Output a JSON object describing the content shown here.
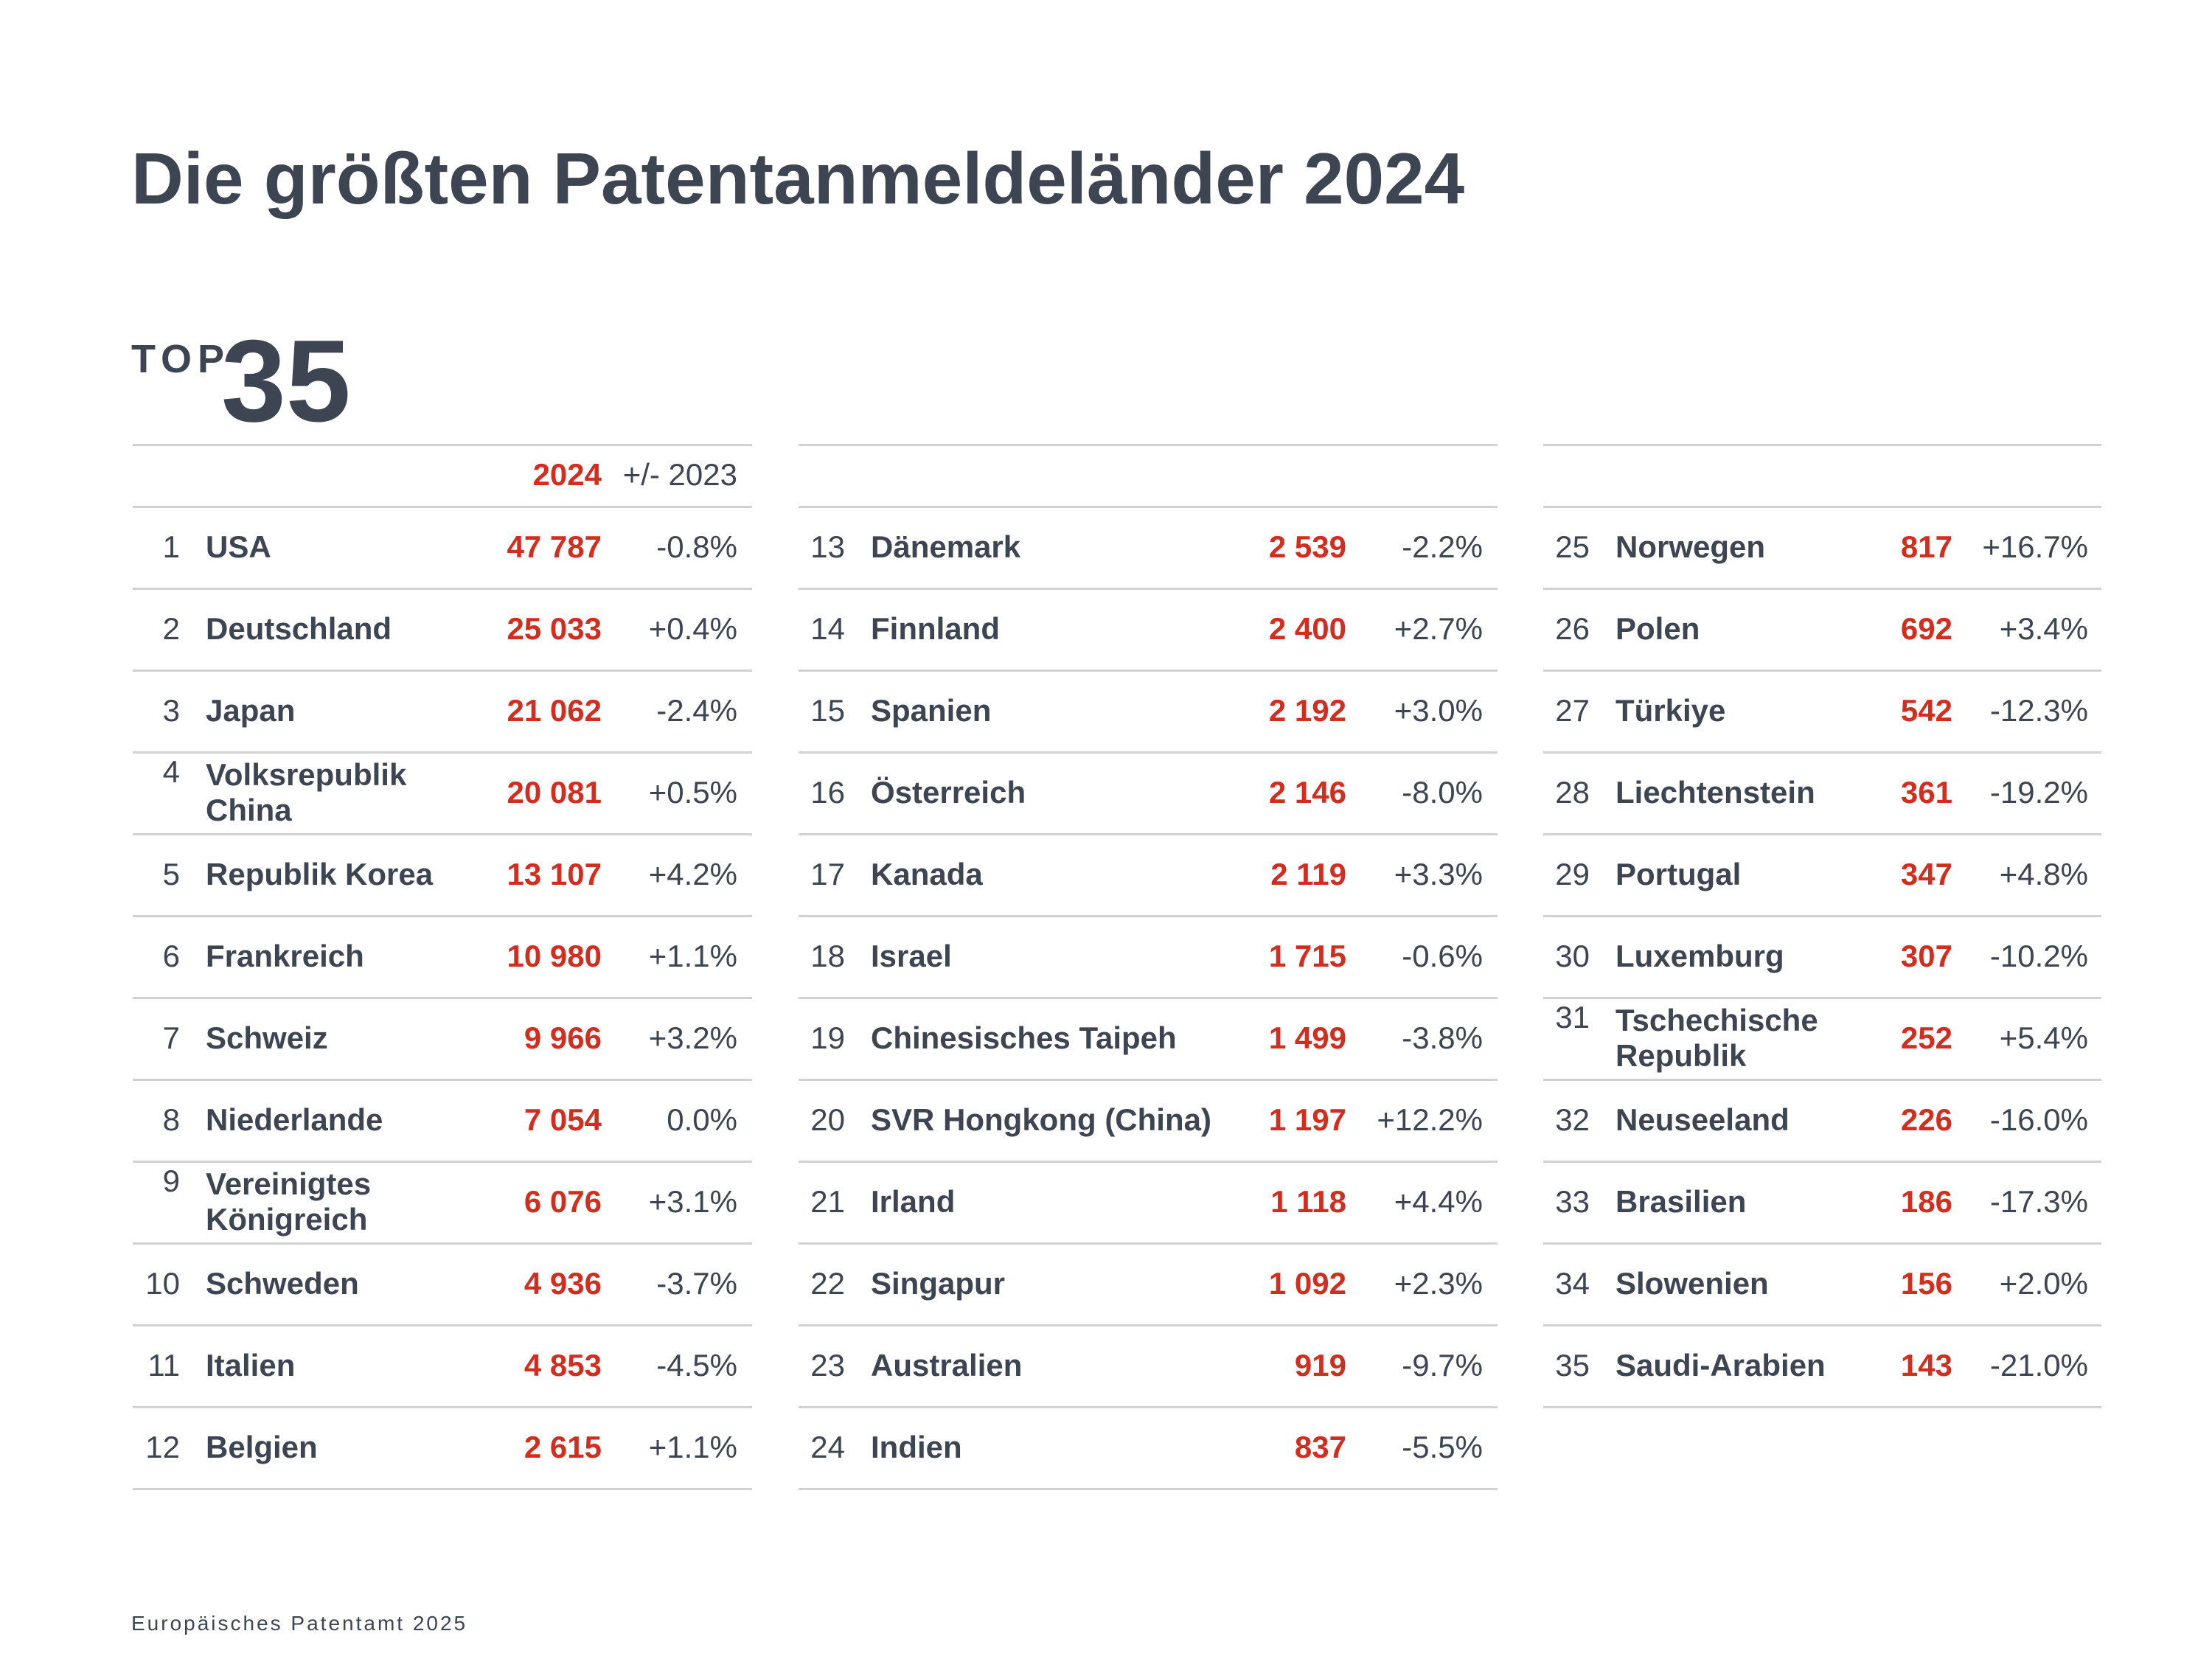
{
  "title": "Die größten Patentanmeldeländer 2024",
  "badge": {
    "prefix": "TOP",
    "number": "35"
  },
  "header": {
    "year": "2024",
    "change": "+/- 2023"
  },
  "footer": "Europäisches Patentamt 2025",
  "colors": {
    "text": "#3d4452",
    "accent": "#d22d1e",
    "divider": "#d2d2d2"
  },
  "chart_data": {
    "type": "table",
    "title": "Die größten Patentanmeldeländer 2024",
    "columns": [
      "",
      "",
      "2024",
      "+/- 2023"
    ],
    "rows": [
      {
        "rank": "1",
        "country": "USA",
        "value": "47 787",
        "change": "-0.8%"
      },
      {
        "rank": "2",
        "country": "Deutschland",
        "value": "25 033",
        "change": "+0.4%"
      },
      {
        "rank": "3",
        "country": "Japan",
        "value": "21 062",
        "change": "-2.4%"
      },
      {
        "rank": "4",
        "country": "Volksrepublik China",
        "value": "20 081",
        "change": "+0.5%"
      },
      {
        "rank": "5",
        "country": "Republik Korea",
        "value": "13 107",
        "change": "+4.2%"
      },
      {
        "rank": "6",
        "country": "Frankreich",
        "value": "10 980",
        "change": "+1.1%"
      },
      {
        "rank": "7",
        "country": "Schweiz",
        "value": "9 966",
        "change": "+3.2%"
      },
      {
        "rank": "8",
        "country": "Niederlande",
        "value": "7 054",
        "change": "0.0%"
      },
      {
        "rank": "9",
        "country": "Vereinigtes Königreich",
        "value": "6 076",
        "change": "+3.1%"
      },
      {
        "rank": "10",
        "country": "Schweden",
        "value": "4 936",
        "change": "-3.7%"
      },
      {
        "rank": "11",
        "country": "Italien",
        "value": "4 853",
        "change": "-4.5%"
      },
      {
        "rank": "12",
        "country": "Belgien",
        "value": "2 615",
        "change": "+1.1%"
      },
      {
        "rank": "13",
        "country": "Dänemark",
        "value": "2 539",
        "change": "-2.2%"
      },
      {
        "rank": "14",
        "country": "Finnland",
        "value": "2 400",
        "change": "+2.7%"
      },
      {
        "rank": "15",
        "country": "Spanien",
        "value": "2 192",
        "change": "+3.0%"
      },
      {
        "rank": "16",
        "country": "Österreich",
        "value": "2 146",
        "change": "-8.0%"
      },
      {
        "rank": "17",
        "country": "Kanada",
        "value": "2 119",
        "change": "+3.3%"
      },
      {
        "rank": "18",
        "country": "Israel",
        "value": "1 715",
        "change": "-0.6%"
      },
      {
        "rank": "19",
        "country": "Chinesisches Taipeh",
        "value": "1 499",
        "change": "-3.8%"
      },
      {
        "rank": "20",
        "country": "SVR Hongkong (China)",
        "value": "1 197",
        "change": "+12.2%"
      },
      {
        "rank": "21",
        "country": "Irland",
        "value": "1 118",
        "change": "+4.4%"
      },
      {
        "rank": "22",
        "country": "Singapur",
        "value": "1 092",
        "change": "+2.3%"
      },
      {
        "rank": "23",
        "country": "Australien",
        "value": "919",
        "change": "-9.7%"
      },
      {
        "rank": "24",
        "country": "Indien",
        "value": "837",
        "change": "-5.5%"
      },
      {
        "rank": "25",
        "country": "Norwegen",
        "value": "817",
        "change": "+16.7%"
      },
      {
        "rank": "26",
        "country": "Polen",
        "value": "692",
        "change": "+3.4%"
      },
      {
        "rank": "27",
        "country": "Türkiye",
        "value": "542",
        "change": "-12.3%"
      },
      {
        "rank": "28",
        "country": "Liechtenstein",
        "value": "361",
        "change": "-19.2%"
      },
      {
        "rank": "29",
        "country": "Portugal",
        "value": "347",
        "change": "+4.8%"
      },
      {
        "rank": "30",
        "country": "Luxemburg",
        "value": "307",
        "change": "-10.2%"
      },
      {
        "rank": "31",
        "country": "Tschechische Republik",
        "value": "252",
        "change": "+5.4%"
      },
      {
        "rank": "32",
        "country": "Neuseeland",
        "value": "226",
        "change": "-16.0%"
      },
      {
        "rank": "33",
        "country": "Brasilien",
        "value": "186",
        "change": "-17.3%"
      },
      {
        "rank": "34",
        "country": "Slowenien",
        "value": "156",
        "change": "+2.0%"
      },
      {
        "rank": "35",
        "country": "Saudi-Arabien",
        "value": "143",
        "change": "-21.0%"
      }
    ]
  }
}
